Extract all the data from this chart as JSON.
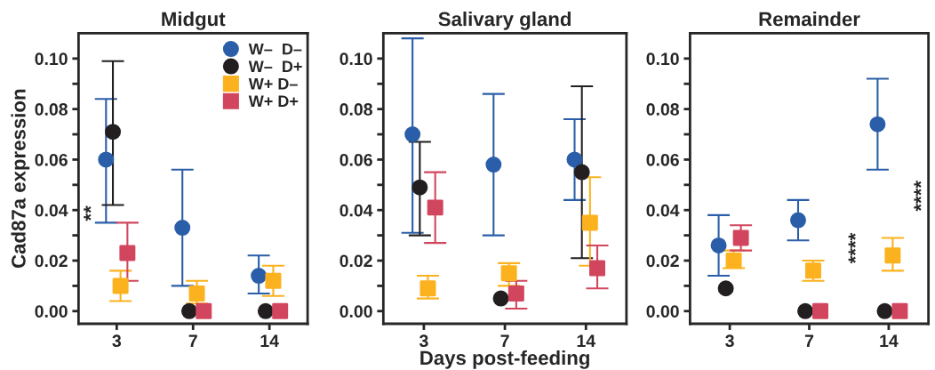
{
  "chart_data": [
    {
      "type": "scatter",
      "title": "Midgut",
      "ylabel": "Cad87a expression",
      "categories": [
        "3",
        "7",
        "14"
      ],
      "ylim": [
        -0.005,
        0.11
      ],
      "yticks": [
        {
          "value": 0.0,
          "label": "0.00"
        },
        {
          "value": 0.01,
          "label": null
        },
        {
          "value": 0.02,
          "label": "0.02"
        },
        {
          "value": 0.03,
          "label": null
        },
        {
          "value": 0.04,
          "label": "0.04"
        },
        {
          "value": 0.05,
          "label": null
        },
        {
          "value": 0.06,
          "label": "0.06"
        },
        {
          "value": 0.07,
          "label": null
        },
        {
          "value": 0.08,
          "label": "0.08"
        },
        {
          "value": 0.09,
          "label": null
        },
        {
          "value": 0.1,
          "label": "0.10"
        }
      ],
      "legend": "top right",
      "annotations": [
        "**"
      ],
      "series": [
        {
          "name": "W–  D–",
          "color": "#2a5ea8",
          "marker": "circle",
          "values": [
            0.06,
            0.033,
            0.014
          ],
          "errors": [
            [
              0.035,
              0.084
            ],
            [
              0.01,
              0.056
            ],
            [
              0.007,
              0.022
            ]
          ]
        },
        {
          "name": "W–  D+",
          "color": "#231f20",
          "marker": "circle",
          "values": [
            0.071,
            0.0,
            0.0
          ],
          "errors": [
            [
              0.042,
              0.099
            ],
            null,
            null
          ]
        },
        {
          "name": "W+ D–",
          "color": "#fbb21e",
          "marker": "square",
          "values": [
            0.01,
            0.007,
            0.012
          ],
          "errors": [
            [
              0.004,
              0.016
            ],
            [
              0.003,
              0.012
            ],
            [
              0.006,
              0.018
            ]
          ]
        },
        {
          "name": "W+ D+",
          "color": "#d1465e",
          "marker": "square",
          "values": [
            0.023,
            0.0,
            0.0
          ],
          "errors": [
            [
              0.012,
              0.035
            ],
            null,
            null
          ]
        }
      ]
    },
    {
      "type": "scatter",
      "title": "Salivary gland",
      "xlabel": "Days post-feeding",
      "categories": [
        "3",
        "7",
        "14"
      ],
      "ylim": [
        -0.005,
        0.11
      ],
      "yticks": [
        {
          "value": 0.0,
          "label": "0.00"
        },
        {
          "value": 0.01,
          "label": null
        },
        {
          "value": 0.02,
          "label": "0.02"
        },
        {
          "value": 0.03,
          "label": null
        },
        {
          "value": 0.04,
          "label": "0.04"
        },
        {
          "value": 0.05,
          "label": null
        },
        {
          "value": 0.06,
          "label": "0.06"
        },
        {
          "value": 0.07,
          "label": null
        },
        {
          "value": 0.08,
          "label": "0.08"
        },
        {
          "value": 0.09,
          "label": null
        },
        {
          "value": 0.1,
          "label": "0.10"
        }
      ],
      "series": [
        {
          "color": "#2a5ea8",
          "marker": "circle",
          "values": [
            0.07,
            0.058,
            0.06
          ],
          "errors": [
            [
              0.031,
              0.108
            ],
            [
              0.03,
              0.086
            ],
            [
              0.044,
              0.076
            ]
          ]
        },
        {
          "color": "#231f20",
          "marker": "circle",
          "values": [
            0.049,
            0.005,
            0.055
          ],
          "errors": [
            [
              0.03,
              0.067
            ],
            null,
            [
              0.021,
              0.089
            ]
          ]
        },
        {
          "color": "#fbb21e",
          "marker": "square",
          "values": [
            0.009,
            0.015,
            0.035
          ],
          "errors": [
            [
              0.005,
              0.014
            ],
            [
              0.01,
              0.019
            ],
            [
              0.018,
              0.053
            ]
          ]
        },
        {
          "color": "#d1465e",
          "marker": "square",
          "values": [
            0.041,
            0.007,
            0.017
          ],
          "errors": [
            [
              0.027,
              0.055
            ],
            [
              0.001,
              0.012
            ],
            [
              0.009,
              0.026
            ]
          ]
        }
      ]
    },
    {
      "type": "scatter",
      "title": "Remainder",
      "categories": [
        "3",
        "7",
        "14"
      ],
      "ylim": [
        -0.005,
        0.11
      ],
      "yticks": [
        {
          "value": 0.0,
          "label": "0.00"
        },
        {
          "value": 0.01,
          "label": null
        },
        {
          "value": 0.02,
          "label": "0.02"
        },
        {
          "value": 0.03,
          "label": null
        },
        {
          "value": 0.04,
          "label": "0.04"
        },
        {
          "value": 0.05,
          "label": null
        },
        {
          "value": 0.06,
          "label": "0.06"
        },
        {
          "value": 0.07,
          "label": null
        },
        {
          "value": 0.08,
          "label": "0.08"
        },
        {
          "value": 0.09,
          "label": null
        },
        {
          "value": 0.1,
          "label": "0.10"
        }
      ],
      "annotations": [
        "****",
        "****"
      ],
      "series": [
        {
          "color": "#2a5ea8",
          "marker": "circle",
          "values": [
            0.026,
            0.036,
            0.074
          ],
          "errors": [
            [
              0.014,
              0.038
            ],
            [
              0.028,
              0.044
            ],
            [
              0.056,
              0.092
            ]
          ]
        },
        {
          "color": "#231f20",
          "marker": "circle",
          "values": [
            0.009,
            0.0,
            0.0
          ]
        },
        {
          "color": "#fbb21e",
          "marker": "square",
          "values": [
            0.02,
            0.016,
            0.022
          ],
          "errors": [
            [
              0.017,
              0.024
            ],
            [
              0.012,
              0.02
            ],
            [
              0.016,
              0.029
            ]
          ]
        },
        {
          "color": "#d1465e",
          "marker": "square",
          "values": [
            0.029,
            0.0,
            0.0
          ],
          "errors": [
            [
              0.024,
              0.034
            ],
            null,
            null
          ]
        }
      ]
    }
  ]
}
